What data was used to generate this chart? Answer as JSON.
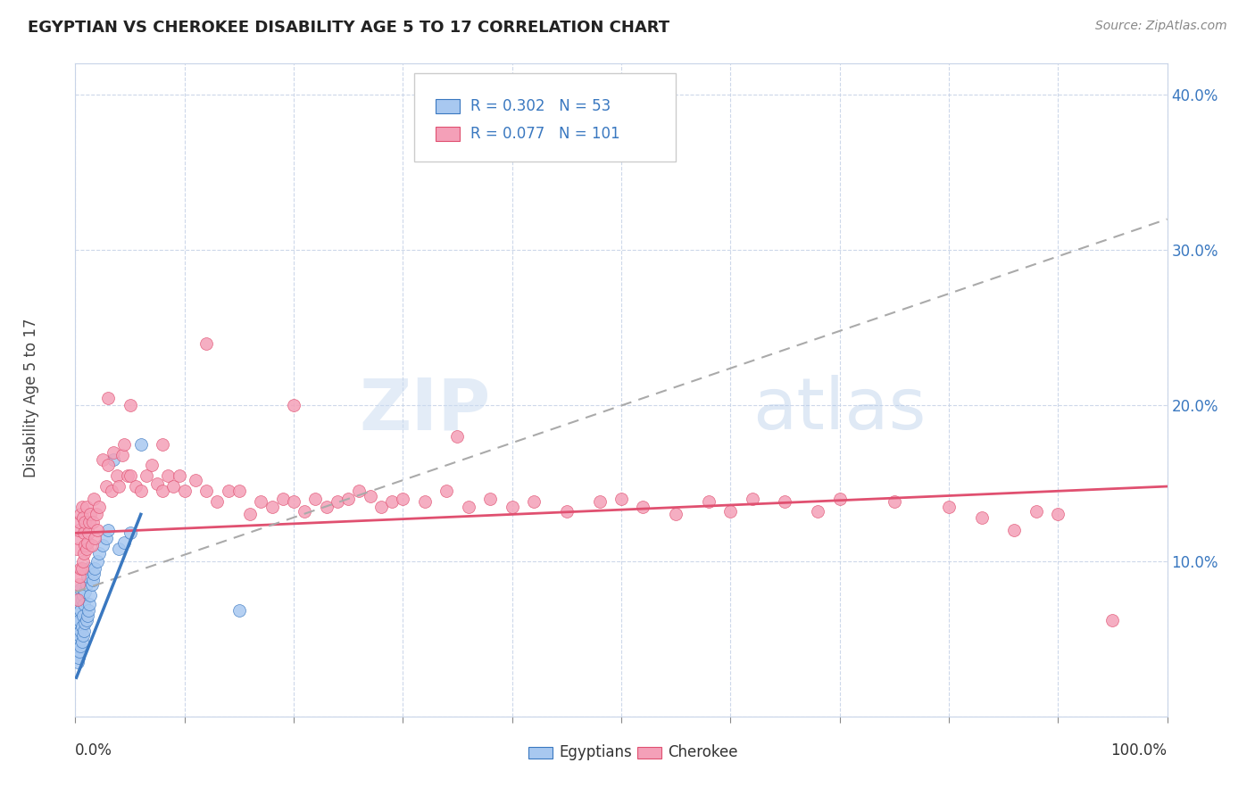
{
  "title": "EGYPTIAN VS CHEROKEE DISABILITY AGE 5 TO 17 CORRELATION CHART",
  "source": "Source: ZipAtlas.com",
  "ylabel": "Disability Age 5 to 17",
  "xlim": [
    0.0,
    1.0
  ],
  "ylim": [
    0.0,
    0.42
  ],
  "legend_label1": "Egyptians",
  "legend_label2": "Cherokee",
  "R1": 0.302,
  "N1": 53,
  "R2": 0.077,
  "N2": 101,
  "color_egyptian": "#a8c8f0",
  "color_cherokee": "#f4a0b8",
  "color_trend_egyptian": "#3a78c0",
  "color_trend_cherokee": "#e05070",
  "color_trend_combined": "#aaaaaa",
  "watermark_zip": "ZIP",
  "watermark_atlas": "atlas",
  "egyptian_x": [
    0.001,
    0.001,
    0.001,
    0.002,
    0.002,
    0.002,
    0.002,
    0.003,
    0.003,
    0.003,
    0.003,
    0.003,
    0.004,
    0.004,
    0.004,
    0.004,
    0.005,
    0.005,
    0.005,
    0.005,
    0.006,
    0.006,
    0.006,
    0.007,
    0.007,
    0.007,
    0.008,
    0.008,
    0.009,
    0.009,
    0.01,
    0.01,
    0.011,
    0.011,
    0.012,
    0.012,
    0.013,
    0.014,
    0.015,
    0.016,
    0.017,
    0.018,
    0.02,
    0.022,
    0.025,
    0.028,
    0.03,
    0.035,
    0.04,
    0.045,
    0.05,
    0.06,
    0.15
  ],
  "egyptian_y": [
    0.04,
    0.055,
    0.065,
    0.035,
    0.045,
    0.055,
    0.068,
    0.038,
    0.048,
    0.06,
    0.07,
    0.08,
    0.042,
    0.052,
    0.062,
    0.075,
    0.045,
    0.055,
    0.068,
    0.082,
    0.048,
    0.058,
    0.075,
    0.052,
    0.065,
    0.078,
    0.055,
    0.072,
    0.06,
    0.08,
    0.062,
    0.085,
    0.065,
    0.09,
    0.068,
    0.095,
    0.072,
    0.078,
    0.085,
    0.088,
    0.092,
    0.095,
    0.1,
    0.105,
    0.11,
    0.115,
    0.12,
    0.165,
    0.108,
    0.112,
    0.118,
    0.175,
    0.068
  ],
  "cherokee_x": [
    0.001,
    0.002,
    0.002,
    0.003,
    0.003,
    0.004,
    0.004,
    0.005,
    0.005,
    0.006,
    0.006,
    0.007,
    0.007,
    0.008,
    0.008,
    0.009,
    0.009,
    0.01,
    0.01,
    0.011,
    0.012,
    0.013,
    0.014,
    0.015,
    0.016,
    0.017,
    0.018,
    0.019,
    0.02,
    0.022,
    0.025,
    0.028,
    0.03,
    0.033,
    0.035,
    0.038,
    0.04,
    0.043,
    0.045,
    0.048,
    0.05,
    0.055,
    0.06,
    0.065,
    0.07,
    0.075,
    0.08,
    0.085,
    0.09,
    0.095,
    0.1,
    0.11,
    0.12,
    0.13,
    0.14,
    0.15,
    0.16,
    0.17,
    0.18,
    0.19,
    0.2,
    0.21,
    0.22,
    0.23,
    0.24,
    0.25,
    0.26,
    0.27,
    0.28,
    0.29,
    0.3,
    0.32,
    0.34,
    0.36,
    0.38,
    0.4,
    0.42,
    0.45,
    0.48,
    0.5,
    0.52,
    0.55,
    0.58,
    0.6,
    0.62,
    0.65,
    0.68,
    0.7,
    0.75,
    0.8,
    0.83,
    0.86,
    0.88,
    0.9,
    0.03,
    0.05,
    0.08,
    0.12,
    0.2,
    0.35,
    0.95
  ],
  "cherokee_y": [
    0.108,
    0.075,
    0.115,
    0.085,
    0.12,
    0.09,
    0.125,
    0.095,
    0.13,
    0.095,
    0.135,
    0.1,
    0.128,
    0.105,
    0.118,
    0.11,
    0.125,
    0.108,
    0.135,
    0.112,
    0.118,
    0.125,
    0.13,
    0.11,
    0.125,
    0.14,
    0.115,
    0.13,
    0.12,
    0.135,
    0.165,
    0.148,
    0.162,
    0.145,
    0.17,
    0.155,
    0.148,
    0.168,
    0.175,
    0.155,
    0.155,
    0.148,
    0.145,
    0.155,
    0.162,
    0.15,
    0.145,
    0.155,
    0.148,
    0.155,
    0.145,
    0.152,
    0.145,
    0.138,
    0.145,
    0.145,
    0.13,
    0.138,
    0.135,
    0.14,
    0.138,
    0.132,
    0.14,
    0.135,
    0.138,
    0.14,
    0.145,
    0.142,
    0.135,
    0.138,
    0.14,
    0.138,
    0.145,
    0.135,
    0.14,
    0.135,
    0.138,
    0.132,
    0.138,
    0.14,
    0.135,
    0.13,
    0.138,
    0.132,
    0.14,
    0.138,
    0.132,
    0.14,
    0.138,
    0.135,
    0.128,
    0.12,
    0.132,
    0.13,
    0.205,
    0.2,
    0.175,
    0.24,
    0.2,
    0.18,
    0.062
  ],
  "eg_trend_x0": 0.001,
  "eg_trend_x1": 0.06,
  "eg_trend_y0": 0.025,
  "eg_trend_y1": 0.13,
  "ch_trend_x0": 0.0,
  "ch_trend_x1": 1.0,
  "ch_trend_y0": 0.118,
  "ch_trend_y1": 0.148,
  "dash_trend_x0": 0.0,
  "dash_trend_x1": 1.0,
  "dash_trend_y0": 0.08,
  "dash_trend_y1": 0.32
}
